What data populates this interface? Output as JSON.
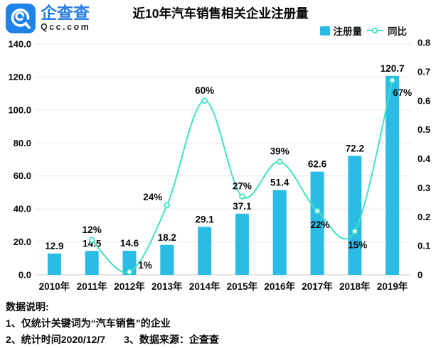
{
  "header": {
    "brand_cn": "企查查",
    "brand_en": "Qcc.com",
    "title": "近10年汽车销售相关企业注册量"
  },
  "legend": {
    "bar_label": "注册量",
    "line_label": "同比"
  },
  "colors": {
    "bar": "#2ABCE5",
    "line": "#3FE3C2",
    "marker_fill": "#ffffff",
    "grid": "#e7e7e7",
    "axis_line": "#cccccc",
    "label_text": "#0a0a0a",
    "logo_blue": "#1E82E8",
    "brand_text_blue": "#2A7DE1"
  },
  "chart_data": {
    "type": "bar+line",
    "title": "近10年汽车销售相关企业注册量",
    "categories": [
      "2010年",
      "2011年",
      "2012年",
      "2013年",
      "2014年",
      "2015年",
      "2016年",
      "2017年",
      "2018年",
      "2019年"
    ],
    "series": [
      {
        "name": "注册量",
        "type": "bar",
        "y_axis": "left",
        "values": [
          12.9,
          14.5,
          14.6,
          18.2,
          29.1,
          37.1,
          51.4,
          62.6,
          72.2,
          120.7
        ],
        "labels": [
          "12.9",
          "14.5",
          "14.6",
          "18.2",
          "29.1",
          "37.1",
          "51.4",
          "62.6",
          "72.2",
          "120.7"
        ]
      },
      {
        "name": "同比",
        "type": "line",
        "y_axis": "right",
        "start_index": 1,
        "values": [
          0.12,
          0.01,
          0.24,
          0.6,
          0.27,
          0.39,
          0.22,
          0.15,
          0.67
        ],
        "labels": [
          "12%",
          "1%",
          "24%",
          "60%",
          "27%",
          "39%",
          "22%",
          "15%",
          "67%"
        ],
        "label_placement": [
          "above",
          "above-right",
          "above-left",
          "above",
          "above",
          "above",
          "below",
          "below",
          "below-right"
        ]
      }
    ],
    "left_axis": {
      "min": 0,
      "max": 140,
      "tick_step": 20,
      "tick_labels": [
        "0.0",
        "20.0",
        "40.0",
        "60.0",
        "80.0",
        "100.0",
        "120.0",
        "140.0"
      ]
    },
    "right_axis": {
      "min": 0,
      "max": 0.8,
      "tick_step": 0.1,
      "tick_labels": [
        "0",
        "0.1",
        "0.2",
        "0.3",
        "0.4",
        "0.5",
        "0.6",
        "0.7",
        "0.8"
      ]
    },
    "grid": true,
    "legend_position": "top-right"
  },
  "footer": {
    "heading": "数据说明:",
    "note1": "1、仅统计关键词为“汽车销售”的企业",
    "note2": "2、统计时间2020/12/7",
    "note3": "3、数据来源：企查查"
  }
}
